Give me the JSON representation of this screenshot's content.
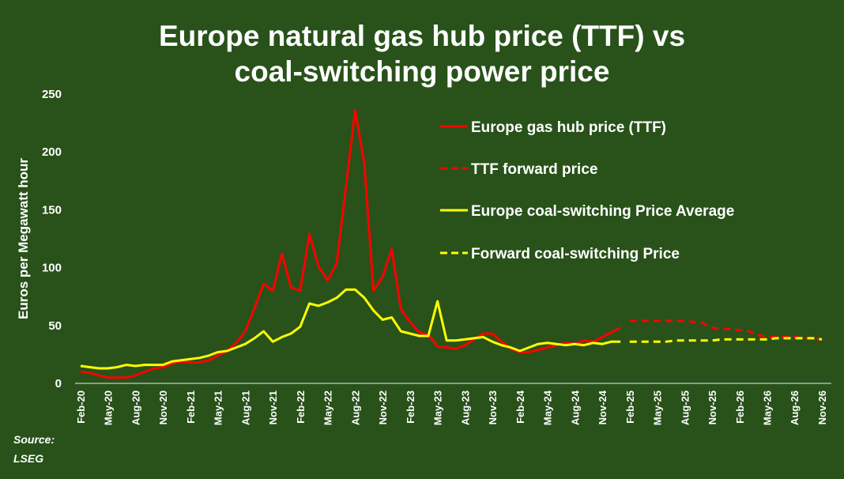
{
  "chart_data": {
    "type": "line",
    "title_lines": [
      "Europe natural gas hub price (TTF) vs",
      "coal-switching power price"
    ],
    "ylabel": "Euros per Megawatt hour",
    "xlabel": "",
    "ylim": [
      0,
      250
    ],
    "yticks": [
      0,
      50,
      100,
      150,
      200,
      250
    ],
    "grid": false,
    "legend_position": "top-right",
    "source_lines": [
      "Source:",
      "LSEG"
    ],
    "x_start": "Feb-20",
    "x_end": "Nov-26",
    "xtick_labels": [
      "Feb-20",
      "May-20",
      "Aug-20",
      "Nov-20",
      "Feb-21",
      "May-21",
      "Aug-21",
      "Nov-21",
      "Feb-22",
      "May-22",
      "Aug-22",
      "Nov-22",
      "Feb-23",
      "May-23",
      "Aug-23",
      "Nov-23",
      "Feb-24",
      "May-24",
      "Aug-24",
      "Nov-24",
      "Feb-25",
      "May-25",
      "Aug-25",
      "Nov-25",
      "Feb-26",
      "May-26",
      "Aug-26",
      "Nov-26"
    ],
    "series": [
      {
        "name": "Europe gas hub price (TTF)",
        "color": "#ff0000",
        "style": "solid",
        "start": "Feb-20",
        "values": [
          10,
          9,
          7,
          5,
          5,
          5,
          7,
          10,
          13,
          14,
          17,
          19,
          18,
          18,
          20,
          24,
          28,
          35,
          45,
          65,
          86,
          80,
          112,
          83,
          80,
          129,
          101,
          89,
          104,
          170,
          236,
          190,
          80,
          92,
          116,
          64,
          53,
          44,
          42,
          32,
          31,
          30,
          33,
          38,
          43,
          43,
          36,
          30,
          27,
          27,
          29,
          31,
          33,
          35,
          34,
          37,
          36,
          40,
          44,
          48
        ]
      },
      {
        "name": "TTF forward price",
        "color": "#ff0000",
        "style": "dashed",
        "start": "Feb-25",
        "values": [
          54,
          54,
          54,
          54,
          54,
          54,
          54,
          53,
          52,
          48,
          47,
          47,
          46,
          45,
          42,
          40,
          40,
          40,
          40,
          39,
          39,
          38
        ]
      },
      {
        "name": "Europe coal-switching Price Average",
        "color": "#ffff00",
        "style": "solid",
        "start": "Feb-20",
        "values": [
          15,
          14,
          13,
          13,
          14,
          16,
          15,
          16,
          16,
          16,
          19,
          20,
          21,
          22,
          24,
          27,
          28,
          31,
          34,
          39,
          45,
          36,
          40,
          43,
          49,
          69,
          67,
          70,
          74,
          81,
          81,
          74,
          63,
          55,
          57,
          45,
          43,
          41,
          41,
          71,
          37,
          37,
          38,
          39,
          40,
          36,
          33,
          31,
          28,
          31,
          34,
          35,
          34,
          33,
          34,
          33,
          35,
          34,
          36,
          36
        ]
      },
      {
        "name": "Forward coal-switching Price",
        "color": "#ffff00",
        "style": "dashed",
        "start": "Feb-25",
        "values": [
          36,
          36,
          36,
          36,
          36,
          37,
          37,
          37,
          37,
          37,
          38,
          38,
          38,
          38,
          38,
          38,
          39,
          39,
          39,
          39,
          39,
          38
        ]
      }
    ]
  }
}
